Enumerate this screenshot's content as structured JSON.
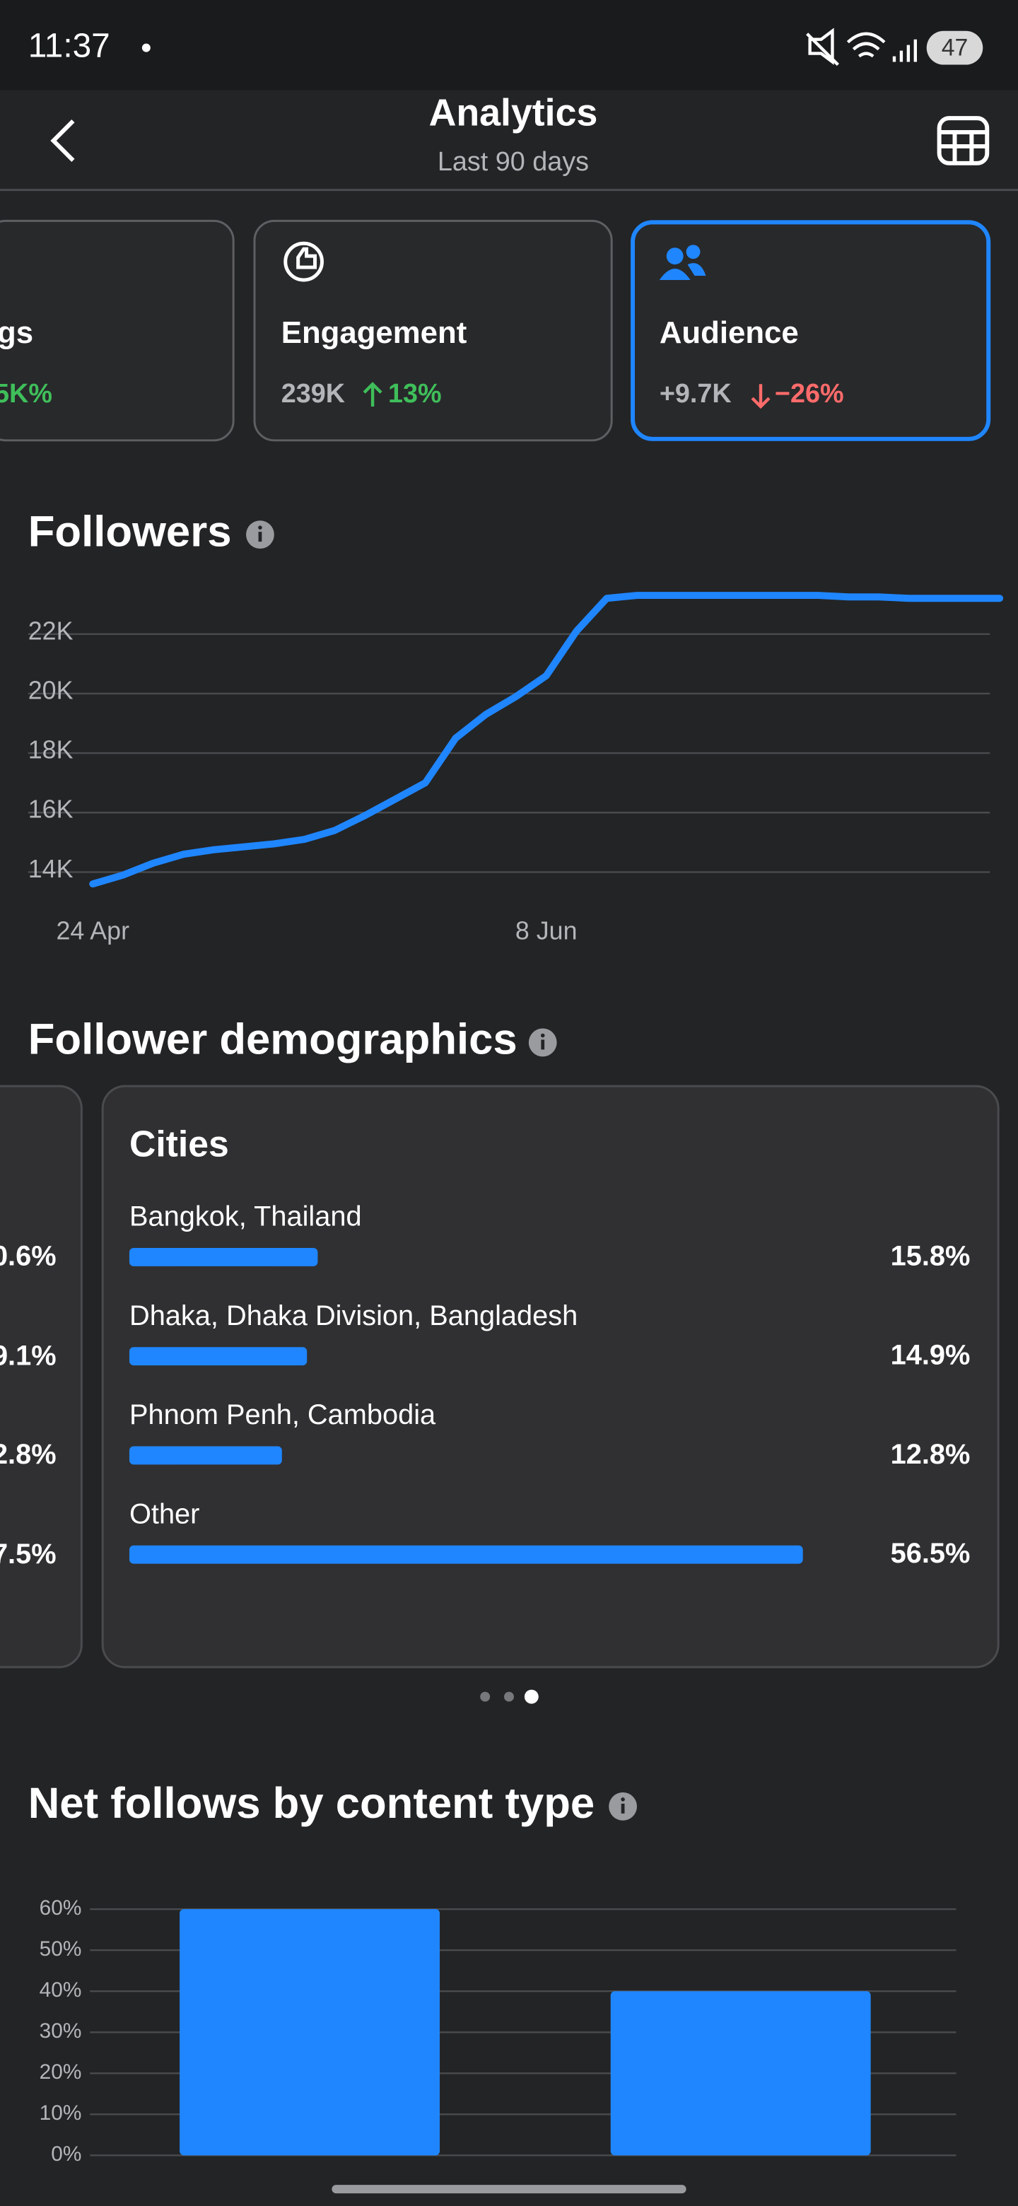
{
  "status_bar": {
    "time": "11:37",
    "battery": "47"
  },
  "header": {
    "title": "Analytics",
    "subtitle": "Last 90 days"
  },
  "cards": [
    {
      "title": "gs",
      "stat": "5K%"
    },
    {
      "title": "Engagement",
      "value": "239K",
      "change": "13%"
    },
    {
      "title": "Audience",
      "value": "+9.7K",
      "change": "−26%"
    }
  ],
  "demographics_title": "Follower demographics",
  "previous_card_values": [
    "0.6%",
    "9.1%",
    "2.8%",
    "7.5%"
  ],
  "chart_data": [
    {
      "type": "line",
      "title": "Followers",
      "categories": [
        "24 Apr",
        null,
        null,
        null,
        null,
        null,
        null,
        null,
        null,
        null,
        null,
        null,
        null,
        null,
        null,
        "8 Jun",
        null,
        null,
        null,
        null,
        null,
        null,
        null,
        null,
        null,
        null,
        null,
        null,
        null,
        null,
        null
      ],
      "values": [
        13600,
        13900,
        14300,
        14600,
        14750,
        14850,
        14950,
        15100,
        15400,
        15900,
        16450,
        17000,
        18500,
        19300,
        19900,
        20600,
        22100,
        23200,
        23300,
        23300,
        23300,
        23300,
        23300,
        23300,
        23300,
        23250,
        23250,
        23200,
        23200,
        23200,
        23200
      ],
      "color": "#1f86ff",
      "ylim": [
        13000,
        23500
      ],
      "yticks": [
        {
          "value": 14000,
          "label": "14K"
        },
        {
          "value": 16000,
          "label": "16K"
        },
        {
          "value": 18000,
          "label": "18K"
        },
        {
          "value": 20000,
          "label": "20K"
        },
        {
          "value": 22000,
          "label": "22K"
        }
      ],
      "grid": true
    },
    {
      "type": "hbar",
      "title": "Cities",
      "categories": [
        "Bangkok, Thailand",
        "Dhaka, Dhaka Division, Bangladesh",
        "Phnom Penh, Cambodia",
        "Other"
      ],
      "values": [
        15.8,
        14.9,
        12.8,
        56.5
      ],
      "value_labels": [
        "15.8%",
        "14.9%",
        "12.8%",
        "56.5%"
      ],
      "color": "#1f86ff"
    },
    {
      "type": "bar",
      "title": "Net follows by content type",
      "categories": [
        null,
        null
      ],
      "values": [
        60,
        40
      ],
      "color": "#1f86ff",
      "ylim": [
        0,
        60
      ],
      "yticks": [
        {
          "value": 0,
          "label": "0%"
        },
        {
          "value": 10,
          "label": "10%"
        },
        {
          "value": 20,
          "label": "20%"
        },
        {
          "value": 30,
          "label": "30%"
        },
        {
          "value": 40,
          "label": "40%"
        },
        {
          "value": 50,
          "label": "50%"
        },
        {
          "value": 60,
          "label": "60%"
        }
      ],
      "grid": true
    }
  ]
}
